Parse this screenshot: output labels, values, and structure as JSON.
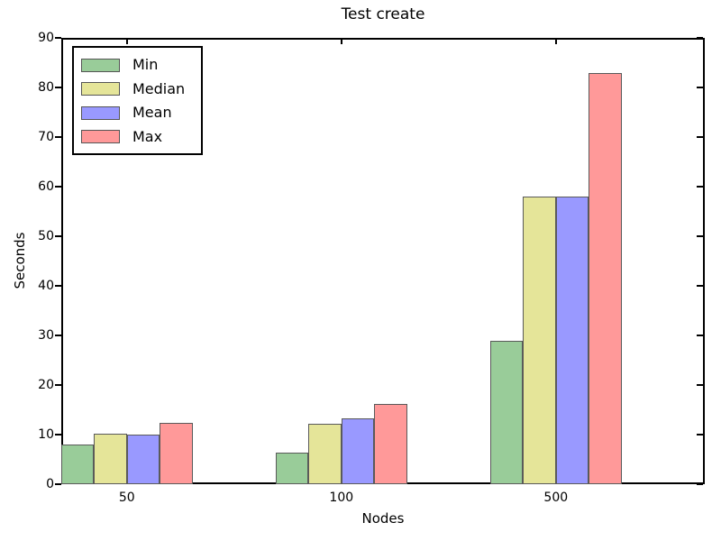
{
  "chart_data": {
    "type": "bar",
    "title": "Test create",
    "xlabel": "Nodes",
    "ylabel": "Seconds",
    "categories": [
      "50",
      "100",
      "500"
    ],
    "series": [
      {
        "name": "Min",
        "color": "#99cc99",
        "values": [
          8.0,
          6.4,
          29.0
        ]
      },
      {
        "name": "Median",
        "color": "#e5e599",
        "values": [
          10.1,
          12.1,
          58.0
        ]
      },
      {
        "name": "Mean",
        "color": "#9999ff",
        "values": [
          10.0,
          13.3,
          58.0
        ]
      },
      {
        "name": "Max",
        "color": "#ff9999",
        "values": [
          12.3,
          16.2,
          83.0
        ]
      }
    ],
    "ylim": [
      0,
      90
    ],
    "ytick_step": 10,
    "yticks": [
      0,
      10,
      20,
      30,
      40,
      50,
      60,
      70,
      80,
      90
    ],
    "grid": false,
    "legend_position": "upper left",
    "bar_edge_color": "#5a5a5a",
    "axis_color": "#000000",
    "background_color": "#ffffff"
  }
}
